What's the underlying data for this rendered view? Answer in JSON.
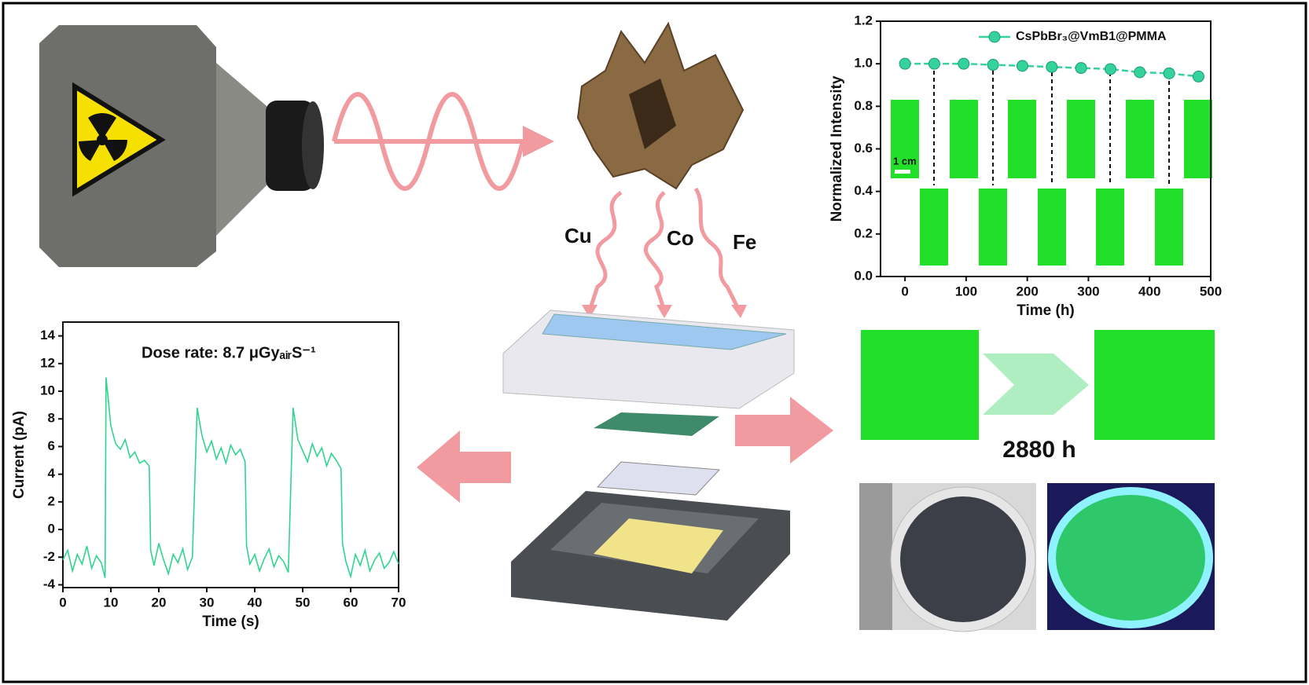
{
  "chart_data": [
    {
      "type": "line",
      "x": [
        0,
        48,
        96,
        144,
        192,
        240,
        288,
        336,
        384,
        432,
        480
      ],
      "series": [
        {
          "name": "CsPbBr₃@VmB1@PMMA",
          "color": "#35d39b",
          "values": [
            1.0,
            1.0,
            1.0,
            0.995,
            0.99,
            0.985,
            0.98,
            0.975,
            0.96,
            0.955,
            0.94
          ]
        }
      ],
      "xlabel": "Time (h)",
      "ylabel": "Normalized Intensity",
      "xlim": [
        -40,
        500
      ],
      "xticks": [
        0,
        100,
        200,
        300,
        400,
        500
      ],
      "ylim": [
        0,
        1.2
      ],
      "yticks": [
        {
          "value": 0,
          "label": "0.0"
        },
        0.2,
        0.4,
        0.6,
        0.8,
        {
          "value": 1,
          "label": "1.0"
        },
        1.2
      ],
      "legend": "upper right"
    },
    {
      "type": "line",
      "annotation": "Dose rate:  8.7 μGyₐᵢᵣS⁻¹",
      "x": [
        0,
        1,
        2,
        3,
        4,
        5,
        6,
        7,
        8,
        8.8,
        9,
        10,
        11,
        12,
        13,
        14,
        15,
        16,
        17,
        18,
        18.3,
        19,
        20,
        21,
        22,
        23,
        24,
        25,
        26,
        27,
        28,
        29,
        30,
        31,
        32,
        33,
        34,
        35,
        36,
        37,
        38,
        38.3,
        39,
        40,
        41,
        42,
        43,
        44,
        45,
        46,
        47,
        48,
        49,
        50,
        51,
        52,
        53,
        54,
        55,
        56,
        57,
        58,
        58.3,
        59,
        60,
        61,
        62,
        63,
        64,
        65,
        66,
        67,
        68,
        69,
        70
      ],
      "series": [
        {
          "name": "Current",
          "color": "#2fd492",
          "values": [
            -2.2,
            -1.5,
            -3,
            -1.8,
            -2.5,
            -1.2,
            -2.8,
            -1.9,
            -2.4,
            -3.5,
            11,
            7.5,
            6.2,
            5.8,
            6.5,
            5.2,
            5.6,
            4.8,
            5,
            4.6,
            -1.5,
            -2.6,
            -1,
            -2.2,
            -3.2,
            -1.8,
            -2.4,
            -1.4,
            -2.9,
            -2,
            8.8,
            6.8,
            5.6,
            6.4,
            5.1,
            5.9,
            4.8,
            6.1,
            5.4,
            5.8,
            4.9,
            -1.2,
            -2.5,
            -1.8,
            -3,
            -2.1,
            -1.4,
            -2.7,
            -1.9,
            -2.3,
            -3.1,
            8.8,
            6.5,
            5.7,
            4.9,
            6.2,
            5.3,
            5.9,
            4.6,
            5.5,
            5,
            4.4,
            -1,
            -2.3,
            -3.4,
            -1.8,
            -2.6,
            -1.5,
            -3,
            -2.2,
            -1.7,
            -2.8,
            -2.4,
            -1.6,
            -2.5
          ]
        }
      ],
      "xlabel": "Time (s)",
      "ylabel": "Current (pA)",
      "xlim": [
        0,
        70
      ],
      "xticks": [
        0,
        10,
        20,
        30,
        40,
        50,
        60,
        70
      ],
      "ylim": [
        -4.2,
        15
      ],
      "yticks": [
        -4,
        -2,
        0,
        2,
        4,
        6,
        8,
        10,
        12,
        14
      ]
    }
  ],
  "labels": {
    "cu": "Cu",
    "co": "Co",
    "fe": "Fe",
    "duration": "2880 h",
    "scale": "1 cm"
  }
}
